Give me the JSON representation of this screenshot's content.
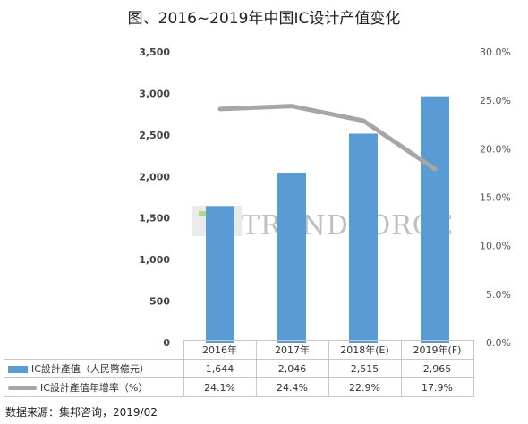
{
  "title": "图、2016~2019年中国IC设计产值变化",
  "watermark": "TRENDFORCE",
  "source": "数据来源：集邦咨询，2019/02",
  "colors": {
    "bar": "#5b9bd5",
    "line": "#a6a6a6"
  },
  "chart_data": {
    "type": "bar",
    "categories": [
      "2016年",
      "2017年",
      "2018年(E)",
      "2019年(F)"
    ],
    "series": [
      {
        "name": "IC設計產值（人民幣億元）",
        "type": "bar",
        "axis": "left",
        "values": [
          1644,
          2046,
          2515,
          2965
        ],
        "labels": [
          "1,644",
          "2,046",
          "2,515",
          "2,965"
        ]
      },
      {
        "name": "IC設計產值年增率（%）",
        "type": "line",
        "axis": "right",
        "values": [
          24.1,
          24.4,
          22.9,
          17.9
        ],
        "labels": [
          "24.1%",
          "24.4%",
          "22.9%",
          "17.9%"
        ]
      }
    ],
    "ylim_left": [
      0,
      3500
    ],
    "ylim_right": [
      0,
      30
    ],
    "yticks_left": [
      "0",
      "500",
      "1,000",
      "1,500",
      "2,000",
      "2,500",
      "3,000",
      "3,500"
    ],
    "yticks_right": [
      "0.0%",
      "5.0%",
      "10.0%",
      "15.0%",
      "20.0%",
      "25.0%",
      "30.0%"
    ],
    "grid": false,
    "legend": "table-below"
  }
}
